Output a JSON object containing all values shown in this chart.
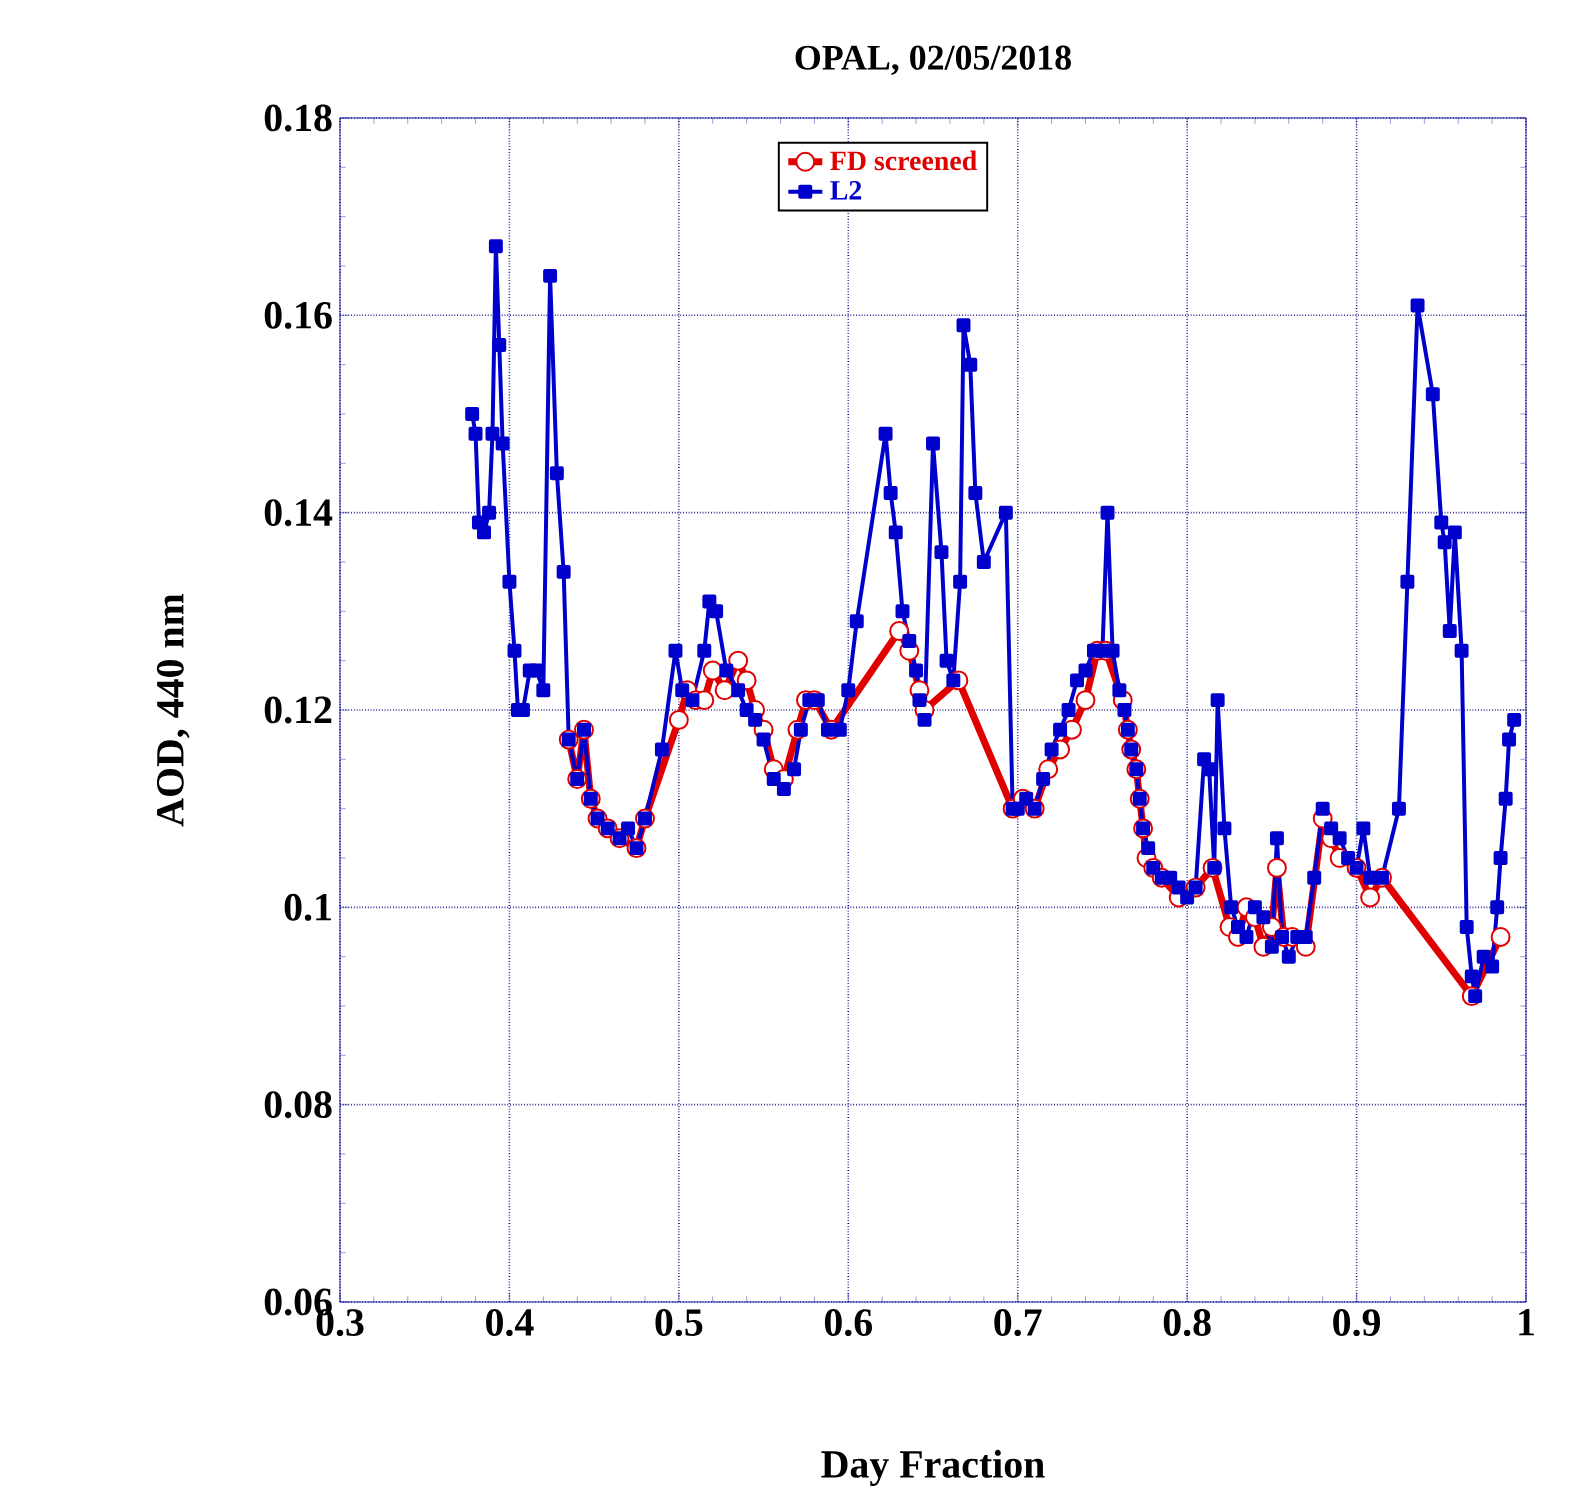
{
  "chart_data": {
    "type": "line",
    "title": "OPAL, 02/05/2018",
    "xlabel": "Day Fraction",
    "ylabel": "AOD, 440 nm",
    "xlim": [
      0.3,
      1
    ],
    "xticks": [
      0.3,
      0.4,
      0.5,
      0.6,
      0.7,
      0.8,
      0.9,
      1
    ],
    "ylim": [
      0.06,
      0.18
    ],
    "yticks": [
      0.06,
      0.08,
      0.1,
      0.12,
      0.14,
      0.16,
      0.18
    ],
    "grid": true,
    "legend": "top",
    "series": [
      {
        "name": "FD screened",
        "color": "#e00000",
        "marker": "circle",
        "x": [
          0.435,
          0.44,
          0.444,
          0.448,
          0.452,
          0.458,
          0.465,
          0.475,
          0.48,
          0.5,
          0.505,
          0.51,
          0.515,
          0.52,
          0.527,
          0.535,
          0.54,
          0.545,
          0.55,
          0.556,
          0.562,
          0.57,
          0.575,
          0.58,
          0.59,
          0.63,
          0.636,
          0.642,
          0.645,
          0.665,
          0.697,
          0.703,
          0.71,
          0.718,
          0.725,
          0.732,
          0.74,
          0.747,
          0.752,
          0.762,
          0.765,
          0.767,
          0.77,
          0.772,
          0.774,
          0.776,
          0.78,
          0.785,
          0.795,
          0.805,
          0.815,
          0.825,
          0.83,
          0.835,
          0.84,
          0.845,
          0.85,
          0.853,
          0.857,
          0.862,
          0.87,
          0.88,
          0.885,
          0.89,
          0.9,
          0.908,
          0.915,
          0.968,
          0.985
        ],
        "values": [
          0.117,
          0.113,
          0.118,
          0.111,
          0.109,
          0.108,
          0.107,
          0.106,
          0.109,
          0.119,
          0.122,
          0.121,
          0.121,
          0.124,
          0.122,
          0.125,
          0.123,
          0.12,
          0.118,
          0.114,
          0.113,
          0.118,
          0.121,
          0.121,
          0.118,
          0.128,
          0.126,
          0.122,
          0.12,
          0.123,
          0.11,
          0.111,
          0.11,
          0.114,
          0.116,
          0.118,
          0.121,
          0.126,
          0.126,
          0.121,
          0.118,
          0.116,
          0.114,
          0.111,
          0.108,
          0.105,
          0.104,
          0.103,
          0.101,
          0.102,
          0.104,
          0.098,
          0.097,
          0.1,
          0.099,
          0.096,
          0.098,
          0.104,
          0.097,
          0.097,
          0.096,
          0.109,
          0.107,
          0.105,
          0.104,
          0.101,
          0.103,
          0.091,
          0.097
        ]
      },
      {
        "name": "L2",
        "color": "#0000cc",
        "marker": "square",
        "x": [
          0.378,
          0.38,
          0.382,
          0.385,
          0.388,
          0.39,
          0.392,
          0.394,
          0.396,
          0.4,
          0.403,
          0.405,
          0.408,
          0.412,
          0.416,
          0.42,
          0.424,
          0.428,
          0.432,
          0.435,
          0.44,
          0.444,
          0.448,
          0.452,
          0.458,
          0.465,
          0.47,
          0.475,
          0.48,
          0.49,
          0.498,
          0.502,
          0.508,
          0.515,
          0.518,
          0.522,
          0.528,
          0.535,
          0.54,
          0.545,
          0.55,
          0.556,
          0.562,
          0.568,
          0.572,
          0.577,
          0.582,
          0.588,
          0.595,
          0.6,
          0.605,
          0.622,
          0.625,
          0.628,
          0.632,
          0.636,
          0.64,
          0.642,
          0.645,
          0.65,
          0.655,
          0.658,
          0.662,
          0.666,
          0.668,
          0.672,
          0.675,
          0.68,
          0.693,
          0.697,
          0.7,
          0.705,
          0.71,
          0.715,
          0.72,
          0.725,
          0.73,
          0.735,
          0.74,
          0.745,
          0.75,
          0.753,
          0.756,
          0.76,
          0.763,
          0.765,
          0.767,
          0.77,
          0.772,
          0.774,
          0.777,
          0.78,
          0.785,
          0.79,
          0.795,
          0.8,
          0.805,
          0.81,
          0.813,
          0.816,
          0.818,
          0.822,
          0.826,
          0.83,
          0.835,
          0.84,
          0.845,
          0.85,
          0.853,
          0.856,
          0.86,
          0.865,
          0.87,
          0.875,
          0.88,
          0.885,
          0.89,
          0.895,
          0.9,
          0.904,
          0.908,
          0.915,
          0.925,
          0.93,
          0.936,
          0.945,
          0.95,
          0.952,
          0.955,
          0.958,
          0.962,
          0.965,
          0.968,
          0.97,
          0.975,
          0.98,
          0.983,
          0.985,
          0.988,
          0.99,
          0.993
        ],
        "values": [
          0.15,
          0.148,
          0.139,
          0.138,
          0.14,
          0.148,
          0.167,
          0.157,
          0.147,
          0.133,
          0.126,
          0.12,
          0.12,
          0.124,
          0.124,
          0.122,
          0.164,
          0.144,
          0.134,
          0.117,
          0.113,
          0.118,
          0.111,
          0.109,
          0.108,
          0.107,
          0.108,
          0.106,
          0.109,
          0.116,
          0.126,
          0.122,
          0.121,
          0.126,
          0.131,
          0.13,
          0.124,
          0.122,
          0.12,
          0.119,
          0.117,
          0.113,
          0.112,
          0.114,
          0.118,
          0.121,
          0.121,
          0.118,
          0.118,
          0.122,
          0.129,
          0.148,
          0.142,
          0.138,
          0.13,
          0.127,
          0.124,
          0.121,
          0.119,
          0.147,
          0.136,
          0.125,
          0.123,
          0.133,
          0.159,
          0.155,
          0.142,
          0.135,
          0.14,
          0.11,
          0.11,
          0.111,
          0.11,
          0.113,
          0.116,
          0.118,
          0.12,
          0.123,
          0.124,
          0.126,
          0.126,
          0.14,
          0.126,
          0.122,
          0.12,
          0.118,
          0.116,
          0.114,
          0.111,
          0.108,
          0.106,
          0.104,
          0.103,
          0.103,
          0.102,
          0.101,
          0.102,
          0.115,
          0.114,
          0.104,
          0.121,
          0.108,
          0.1,
          0.098,
          0.097,
          0.1,
          0.099,
          0.096,
          0.107,
          0.097,
          0.095,
          0.097,
          0.097,
          0.103,
          0.11,
          0.108,
          0.107,
          0.105,
          0.104,
          0.108,
          0.103,
          0.103,
          0.11,
          0.133,
          0.161,
          0.152,
          0.139,
          0.137,
          0.128,
          0.138,
          0.126,
          0.098,
          0.093,
          0.091,
          0.095,
          0.094,
          0.1,
          0.105,
          0.111,
          0.117,
          0.119
        ]
      }
    ]
  }
}
